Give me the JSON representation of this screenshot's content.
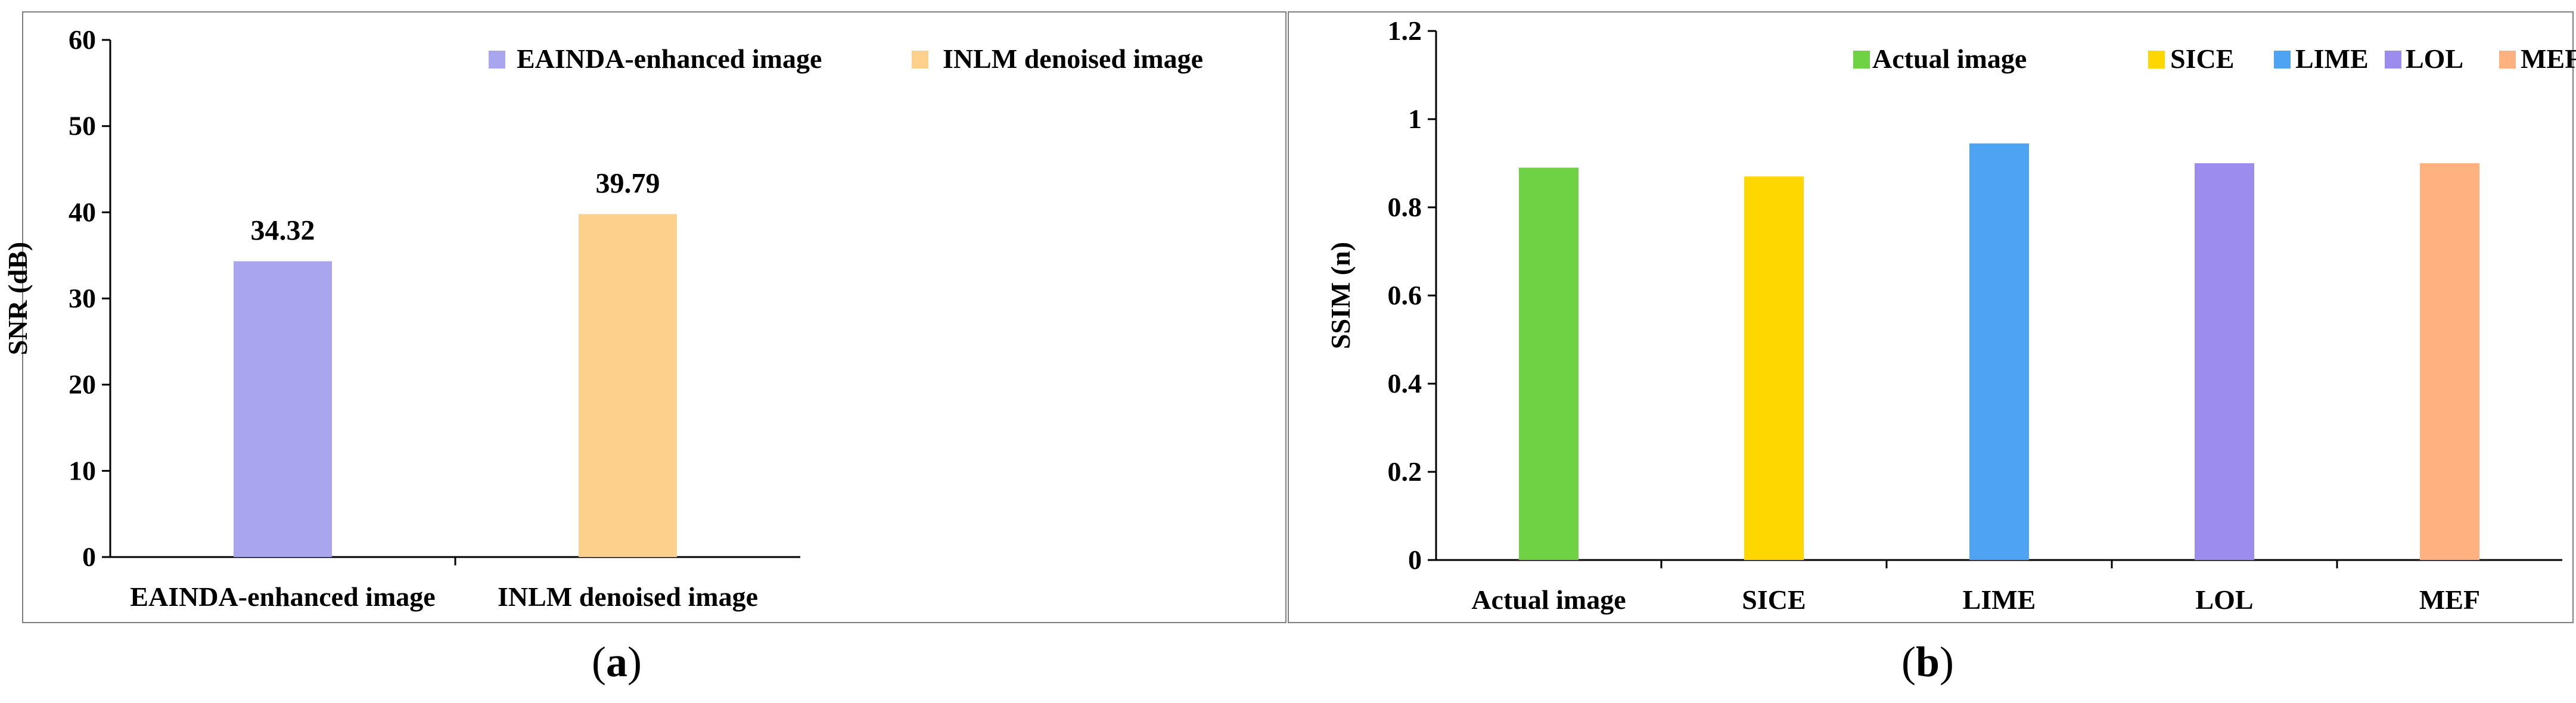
{
  "chart_data": [
    {
      "panel": "a",
      "caption": "(a)",
      "caption_letter": "a",
      "type": "bar",
      "categories": [
        "EAINDA-enhanced image",
        "INLM denoised image"
      ],
      "series": [
        {
          "name": "EAINDA-enhanced image",
          "values": [
            34.32,
            null
          ],
          "color": "#a9a6ef"
        },
        {
          "name": "INLM denoised image",
          "values": [
            null,
            39.79
          ],
          "color": "#fdd08c"
        }
      ],
      "data_labels": [
        "34.32",
        "39.79"
      ],
      "xlabel": "",
      "ylabel": "SNR (dB)",
      "ylim": [
        0,
        60
      ],
      "yticks": [
        "0",
        "10",
        "20",
        "30",
        "40",
        "50",
        "60"
      ],
      "ytick_values": [
        0,
        10,
        20,
        30,
        40,
        50,
        60
      ],
      "grid": false,
      "legend_position": "top-right"
    },
    {
      "panel": "b",
      "caption": "(b)",
      "caption_letter": "b",
      "type": "bar",
      "categories": [
        "Actual image",
        "SICE",
        "LIME",
        "LOL",
        "MEF"
      ],
      "series": [
        {
          "name": "Actual image",
          "values": [
            0.89,
            null,
            null,
            null,
            null
          ],
          "color": "#6fd144"
        },
        {
          "name": "SICE",
          "values": [
            null,
            0.87,
            null,
            null,
            null
          ],
          "color": "#ffd700"
        },
        {
          "name": "LIME",
          "values": [
            null,
            null,
            0.945,
            null,
            null
          ],
          "color": "#4fa3f3"
        },
        {
          "name": "LOL",
          "values": [
            null,
            null,
            null,
            0.9,
            null
          ],
          "color": "#9b8ced"
        },
        {
          "name": "MEF",
          "values": [
            null,
            null,
            null,
            null,
            0.9
          ],
          "color": "#ffb280"
        }
      ],
      "xlabel": "",
      "ylabel": "SSIM (n)",
      "ylim": [
        0,
        1.2
      ],
      "yticks": [
        "0",
        "0.2",
        "0.4",
        "0.6",
        "0.8",
        "1",
        "1.2"
      ],
      "ytick_values": [
        0,
        0.2,
        0.4,
        0.6,
        0.8,
        1.0,
        1.2
      ],
      "grid": false,
      "legend_position": "top-right"
    }
  ]
}
